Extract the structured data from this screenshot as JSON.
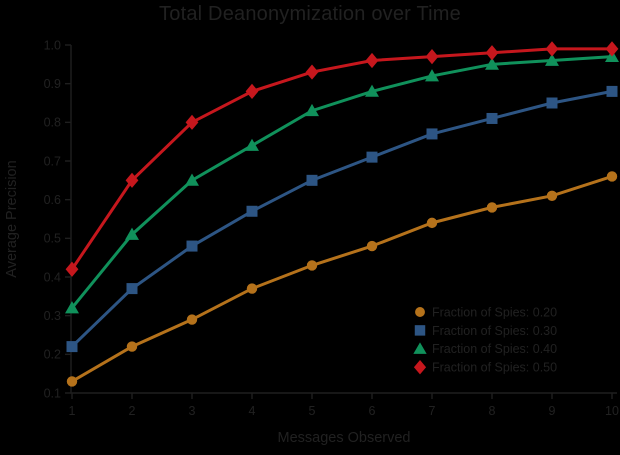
{
  "chart_data": {
    "type": "line",
    "title": "Total Deanonymization over Time",
    "xlabel": "Messages Observed",
    "ylabel": "Average Precision",
    "x": [
      1,
      2,
      3,
      4,
      5,
      6,
      7,
      8,
      9,
      10
    ],
    "xticks": [
      1,
      2,
      3,
      4,
      5,
      6,
      7,
      8,
      9,
      10
    ],
    "yticks": [
      0.1,
      0.2,
      0.3,
      0.4,
      0.5,
      0.6,
      0.7,
      0.8,
      0.9,
      1.0
    ],
    "xlim": [
      1,
      10
    ],
    "ylim": [
      0.1,
      1.0
    ],
    "grid": false,
    "legend_position": "lower right",
    "legend_frame": false,
    "background_color": "#000000",
    "text_color": "#212121",
    "axis_color": "#1f1f1f",
    "series": [
      {
        "name": "Fraction of Spies: 0.20",
        "color": "#B5721B",
        "marker": "circle",
        "values": [
          0.13,
          0.22,
          0.29,
          0.37,
          0.43,
          0.48,
          0.54,
          0.58,
          0.61,
          0.66
        ]
      },
      {
        "name": "Fraction of Spies: 0.30",
        "color": "#2D5584",
        "marker": "square",
        "values": [
          0.22,
          0.37,
          0.48,
          0.57,
          0.65,
          0.71,
          0.77,
          0.81,
          0.85,
          0.88
        ]
      },
      {
        "name": "Fraction of Spies: 0.40",
        "color": "#10915B",
        "marker": "triangle",
        "values": [
          0.32,
          0.51,
          0.65,
          0.74,
          0.83,
          0.88,
          0.92,
          0.95,
          0.96,
          0.97
        ]
      },
      {
        "name": "Fraction of Spies: 0.50",
        "color": "#C6171D",
        "marker": "diamond",
        "values": [
          0.42,
          0.65,
          0.8,
          0.88,
          0.93,
          0.96,
          0.97,
          0.98,
          0.99,
          0.99
        ]
      }
    ]
  }
}
